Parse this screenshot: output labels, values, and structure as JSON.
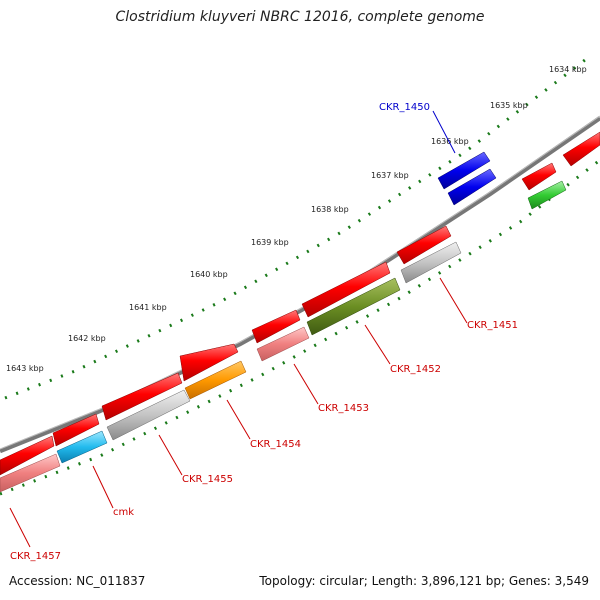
{
  "title": "Clostridium kluyveri NBRC 12016, complete genome",
  "footer": {
    "accession": "Accession: NC_011837",
    "info": "Topology: circular; Length: 3,896,121 bp; Genes: 3,549"
  },
  "ticks": [
    "1634 kbp",
    "1635 kbp",
    "1636 kbp",
    "1637 kbp",
    "1638 kbp",
    "1639 kbp",
    "1640 kbp",
    "1641 kbp",
    "1642 kbp",
    "1643 kbp"
  ],
  "genes": [
    {
      "name": "CKR_1450",
      "color": "#0000cc"
    },
    {
      "name": "CKR_1451",
      "color": "#cc0000"
    },
    {
      "name": "CKR_1452",
      "color": "#cc0000"
    },
    {
      "name": "CKR_1453",
      "color": "#cc0000"
    },
    {
      "name": "CKR_1454",
      "color": "#cc0000"
    },
    {
      "name": "CKR_1455",
      "color": "#cc0000"
    },
    {
      "name": "cmk",
      "color": "#cc0000"
    },
    {
      "name": "CKR_1457",
      "color": "#cc0000"
    }
  ]
}
